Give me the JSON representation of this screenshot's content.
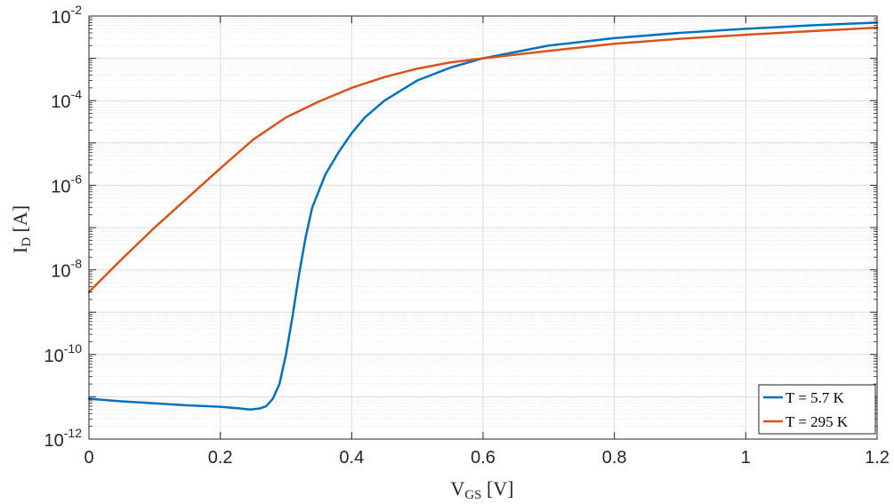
{
  "chart_data": {
    "type": "line",
    "xlabel": {
      "main": "V",
      "sub": "GS",
      "rest": " [V]"
    },
    "ylabel": {
      "main": "I",
      "sub": "D",
      "rest": " [A]"
    },
    "x_ticks": [
      "0",
      "0.2",
      "0.4",
      "0.6",
      "0.8",
      "1",
      "1.2"
    ],
    "y_ticks": [
      {
        "base": "10",
        "exp": "-12"
      },
      {
        "base": "10",
        "exp": "-10"
      },
      {
        "base": "10",
        "exp": "-8"
      },
      {
        "base": "10",
        "exp": "-6"
      },
      {
        "base": "10",
        "exp": "-4"
      },
      {
        "base": "10",
        "exp": "-2"
      }
    ],
    "xlim": [
      0,
      1.2
    ],
    "ylim": [
      1e-12,
      0.01
    ],
    "yscale": "log",
    "grid": true,
    "minor_grid": true,
    "legend_position": "bottom-right",
    "series": [
      {
        "name": "T = 5.7 K",
        "color": "#0072BD",
        "x": [
          0,
          0.02,
          0.05,
          0.1,
          0.15,
          0.2,
          0.23,
          0.245,
          0.26,
          0.27,
          0.28,
          0.29,
          0.3,
          0.31,
          0.32,
          0.33,
          0.34,
          0.36,
          0.38,
          0.4,
          0.42,
          0.45,
          0.5,
          0.55,
          0.6,
          0.7,
          0.8,
          0.9,
          1.0,
          1.1,
          1.2
        ],
        "y": [
          9e-12,
          8.5e-12,
          7.8e-12,
          7e-12,
          6.3e-12,
          5.8e-12,
          5.3e-12,
          5e-12,
          5.3e-12,
          6e-12,
          9e-12,
          2e-11,
          1e-10,
          8e-10,
          8e-09,
          6e-08,
          3e-07,
          1.8e-06,
          6e-06,
          1.7e-05,
          4e-05,
          0.0001,
          0.0003,
          0.0006,
          0.001,
          0.002,
          0.003,
          0.004,
          0.005,
          0.006,
          0.007
        ]
      },
      {
        "name": "T = 295 K",
        "color": "#D95319",
        "x": [
          0,
          0.05,
          0.1,
          0.15,
          0.2,
          0.25,
          0.3,
          0.35,
          0.4,
          0.45,
          0.5,
          0.55,
          0.6,
          0.7,
          0.8,
          0.9,
          1.0,
          1.1,
          1.2
        ],
        "y": [
          3e-09,
          1.8e-08,
          1e-07,
          5e-07,
          2.5e-06,
          1.2e-05,
          4e-05,
          9.5e-05,
          0.0002,
          0.00036,
          0.00057,
          0.0008,
          0.001,
          0.0015,
          0.0022,
          0.0029,
          0.0036,
          0.0044,
          0.0053
        ]
      }
    ]
  }
}
